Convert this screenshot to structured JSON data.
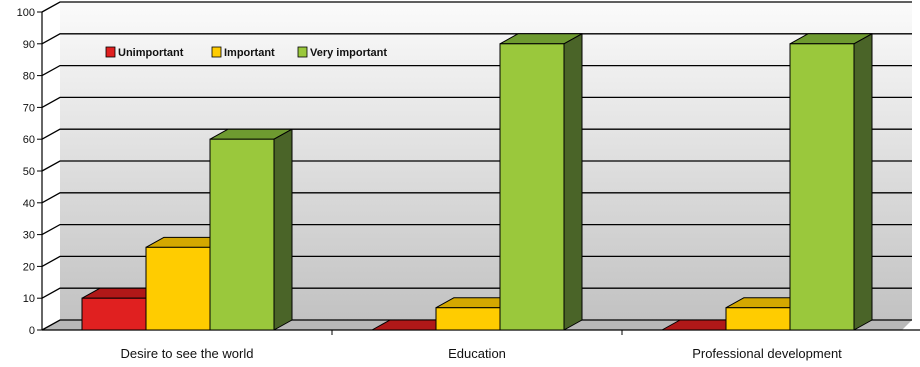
{
  "chart_data": {
    "type": "bar",
    "title": "",
    "xlabel": "",
    "ylabel": "",
    "ylim": [
      0,
      100
    ],
    "yticks": [
      0,
      10,
      20,
      30,
      40,
      50,
      60,
      70,
      80,
      90,
      100
    ],
    "grid": true,
    "three_d": true,
    "legend_position": "top-left",
    "categories": [
      "Desire to see the world",
      "Education",
      "Professional development"
    ],
    "series": [
      {
        "name": "Unimportant",
        "color": "#e02020",
        "side_color": "#8c1010",
        "top_color": "#b01818",
        "values": [
          10,
          0,
          0
        ]
      },
      {
        "name": "Important",
        "color": "#ffcc00",
        "side_color": "#9a7a00",
        "top_color": "#d4a800",
        "values": [
          26,
          7,
          7
        ]
      },
      {
        "name": "Very important",
        "color": "#9ac83c",
        "side_color": "#4a6428",
        "top_color": "#6e9a30",
        "values": [
          60,
          90,
          90
        ]
      }
    ]
  }
}
